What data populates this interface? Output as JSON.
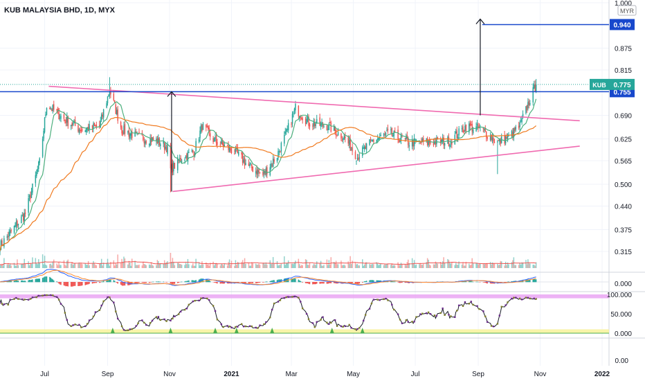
{
  "header": {
    "title": "KUB MALAYSIA BHD, 1D, MYX"
  },
  "currency_badge": "MYR",
  "chart_data": {
    "type": "candlestick",
    "title": "KUB MALAYSIA BHD, 1D, MYX",
    "currency": "MYR",
    "xlabel": "",
    "ylabel": "",
    "x_range": [
      "2020-05-18",
      "2022-01-01"
    ],
    "price_axis": {
      "range": [
        0.475,
        1.0
      ],
      "ticks": [
        "0.500",
        "0.565",
        "0.625",
        "0.690",
        "0.815",
        "0.875",
        "1.000"
      ]
    },
    "x_ticks": [
      {
        "date": "2020-07-01",
        "label": "Jul",
        "bold": false
      },
      {
        "date": "2020-09-01",
        "label": "Sep",
        "bold": false
      },
      {
        "date": "2020-11-01",
        "label": "Nov",
        "bold": false
      },
      {
        "date": "2021-01-01",
        "label": "2021",
        "bold": true
      },
      {
        "date": "2021-03-01",
        "label": "Mar",
        "bold": false
      },
      {
        "date": "2021-05-01",
        "label": "May",
        "bold": false
      },
      {
        "date": "2021-07-01",
        "label": "Jul",
        "bold": false
      },
      {
        "date": "2021-09-01",
        "label": "Sep",
        "bold": false
      },
      {
        "date": "2021-11-01",
        "label": "Nov",
        "bold": false
      },
      {
        "date": "2022-01-01",
        "label": "2022",
        "bold": true
      }
    ],
    "close_anchors": [
      [
        "2020-05-18",
        0.33
      ],
      [
        "2020-06-12",
        0.42
      ],
      [
        "2020-06-26",
        0.56
      ],
      [
        "2020-07-03",
        0.72
      ],
      [
        "2020-07-20",
        0.68
      ],
      [
        "2020-08-06",
        0.65
      ],
      [
        "2020-08-24",
        0.66
      ],
      [
        "2020-09-03",
        0.76
      ],
      [
        "2020-09-15",
        0.65
      ],
      [
        "2020-10-01",
        0.63
      ],
      [
        "2020-10-20",
        0.62
      ],
      [
        "2020-10-30",
        0.6
      ],
      [
        "2020-11-02",
        0.54
      ],
      [
        "2020-11-12",
        0.57
      ],
      [
        "2020-11-25",
        0.59
      ],
      [
        "2020-12-03",
        0.66
      ],
      [
        "2020-12-15",
        0.62
      ],
      [
        "2021-01-04",
        0.59
      ],
      [
        "2021-01-18",
        0.55
      ],
      [
        "2021-02-01",
        0.525
      ],
      [
        "2021-02-15",
        0.58
      ],
      [
        "2021-02-24",
        0.64
      ],
      [
        "2021-03-05",
        0.71
      ],
      [
        "2021-03-18",
        0.67
      ],
      [
        "2021-04-06",
        0.66
      ],
      [
        "2021-04-22",
        0.63
      ],
      [
        "2021-05-05",
        0.575
      ],
      [
        "2021-05-20",
        0.62
      ],
      [
        "2021-06-05",
        0.64
      ],
      [
        "2021-06-25",
        0.615
      ],
      [
        "2021-07-15",
        0.615
      ],
      [
        "2021-08-05",
        0.62
      ],
      [
        "2021-08-20",
        0.66
      ],
      [
        "2021-09-05",
        0.65
      ],
      [
        "2021-09-20",
        0.615
      ],
      [
        "2021-10-01",
        0.63
      ],
      [
        "2021-10-12",
        0.66
      ],
      [
        "2021-10-20",
        0.72
      ],
      [
        "2021-10-28",
        0.775
      ]
    ],
    "series": [
      {
        "name": "KUB",
        "last": 0.775,
        "color": "#26a69a"
      }
    ],
    "horizontal_levels": [
      {
        "value": 0.755,
        "label": "0.755",
        "color": "#1848cc"
      },
      {
        "value": 0.94,
        "label": "0.940",
        "color": "#1848cc",
        "start": "2021-09-05"
      }
    ],
    "last_price_label": {
      "name": "KUB",
      "value": 0.775,
      "label": "0.775",
      "color": "#26a69a"
    },
    "trendlines": [
      {
        "from": [
          "2020-07-05",
          0.77
        ],
        "to": [
          "2021-12-10",
          0.675
        ],
        "color": "#f06ab0"
      },
      {
        "from": [
          "2020-11-04",
          0.48
        ],
        "to": [
          "2021-12-10",
          0.605
        ],
        "color": "#f06ab0"
      }
    ],
    "arrows": [
      {
        "date": "2020-11-03",
        "from": 0.48,
        "to": 0.755
      },
      {
        "date": "2021-09-03",
        "from": 0.69,
        "to": 0.955
      }
    ],
    "moving_averages": [
      {
        "period": 10,
        "color": "#4caf7d"
      },
      {
        "period": 50,
        "color": "#f07a1f"
      }
    ],
    "volume": {
      "color": "#ef5350"
    },
    "macd": {
      "zero_label": "0.000",
      "macd_color": "#2962ff",
      "signal_color": "#ff8a30"
    },
    "stoch": {
      "ticks": [
        {
          "value": 100,
          "label": "100.000"
        },
        {
          "value": 50,
          "label": "50.000"
        },
        {
          "value": 0,
          "label": "0.000"
        }
      ],
      "overbought_color": "#e9a0f3",
      "oversold_color": "#f7f3a0",
      "signal_marker_dates": [
        "2020-09-06",
        "2020-11-02",
        "2020-12-16",
        "2021-01-06",
        "2021-02-10",
        "2021-04-10",
        "2021-05-10"
      ]
    },
    "bottom_axis_label": "0.00"
  }
}
